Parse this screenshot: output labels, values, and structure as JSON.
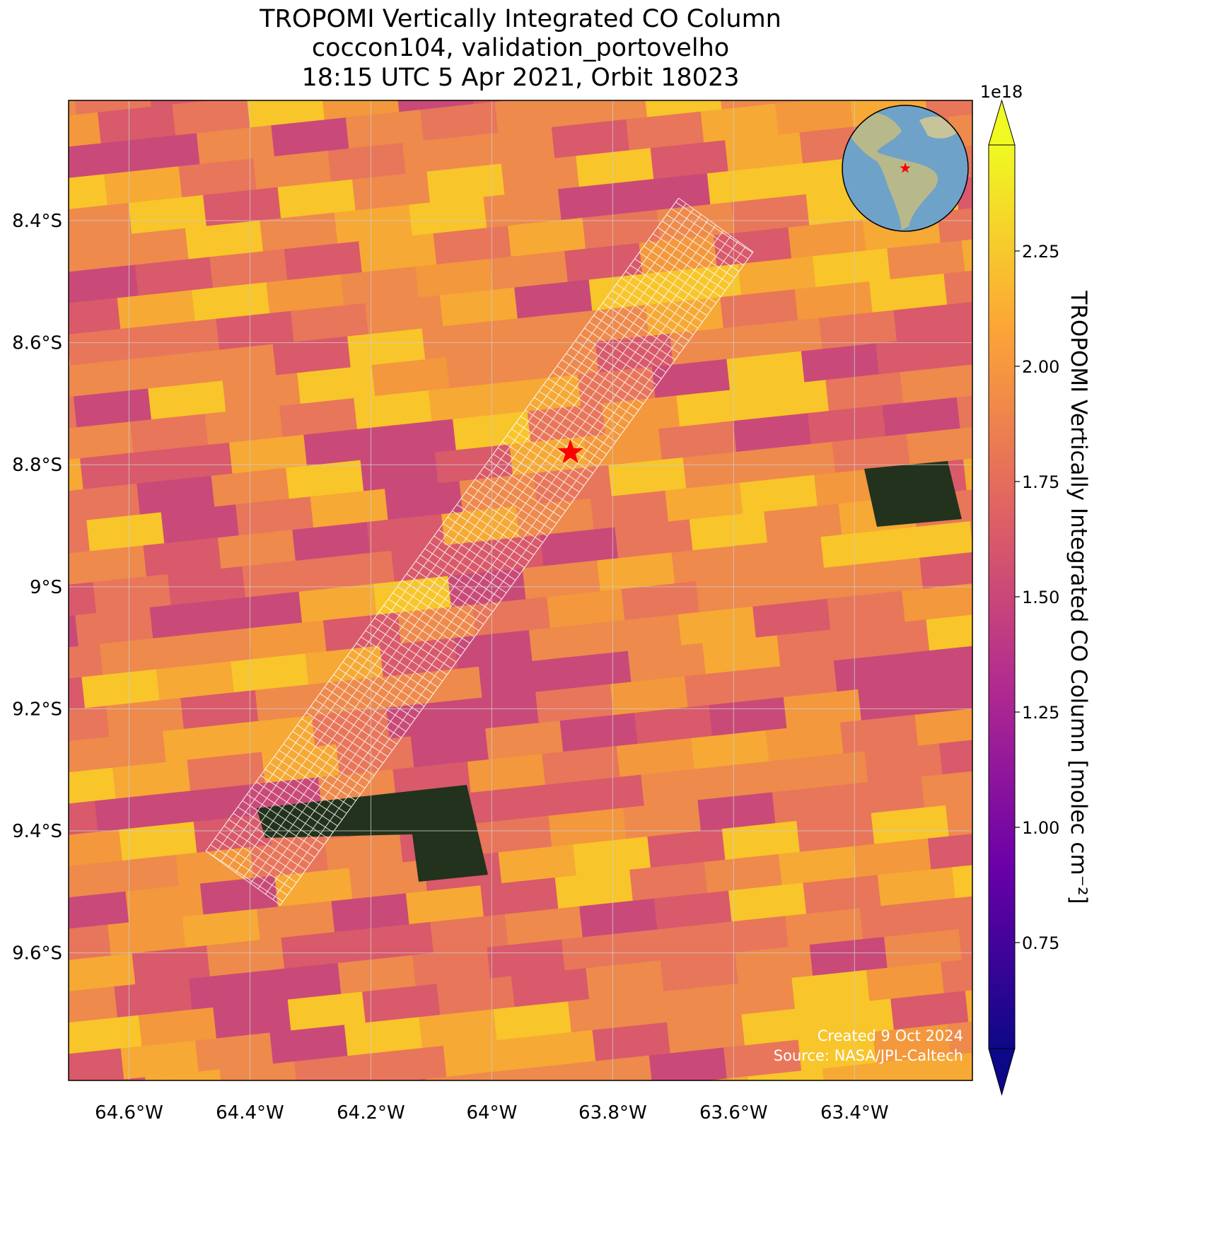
{
  "chart_data": {
    "type": "map",
    "title": [
      "TROPOMI Vertically Integrated CO Column",
      "coccon104, validation_portovelho",
      "18:15 UTC 5 Apr 2021, Orbit 18023"
    ],
    "xlim": [
      -64.7,
      -63.205
    ],
    "ylim": [
      -9.809,
      -8.203
    ],
    "xticks": [
      {
        "value": -64.6,
        "label": "64.6°W"
      },
      {
        "value": -64.4,
        "label": "64.4°W"
      },
      {
        "value": -64.2,
        "label": "64.2°W"
      },
      {
        "value": -64.0,
        "label": "64°W"
      },
      {
        "value": -63.8,
        "label": "63.8°W"
      },
      {
        "value": -63.6,
        "label": "63.6°W"
      },
      {
        "value": -63.4,
        "label": "63.4°W"
      }
    ],
    "yticks": [
      {
        "value": -8.4,
        "label": "8.4°S"
      },
      {
        "value": -8.6,
        "label": "8.6°S"
      },
      {
        "value": -8.8,
        "label": "8.8°S"
      },
      {
        "value": -9.0,
        "label": "9°S"
      },
      {
        "value": -9.2,
        "label": "9.2°S"
      },
      {
        "value": -9.4,
        "label": "9.4°S"
      },
      {
        "value": -9.6,
        "label": "9.6°S"
      }
    ],
    "grid": true,
    "site": {
      "lon": -63.87,
      "lat": -8.78,
      "color": "#ff0000"
    },
    "colorbar": {
      "label": "TROPOMI Vertically Integrated CO Column [molec cm⁻²]",
      "multiplier": "1e18",
      "lim": [
        0.52,
        2.48
      ],
      "ticks": [
        0.75,
        {
          "value": 1.0,
          "label": "1.00"
        },
        1.25,
        {
          "value": 1.5,
          "label": "1.50"
        },
        1.75,
        {
          "value": 2.0,
          "label": "2.00"
        },
        2.25
      ],
      "colors": [
        "#0d0887",
        "#6a00a8",
        "#b12a90",
        "#e16462",
        "#fca636",
        "#f0f921"
      ],
      "extend": "both"
    },
    "annotations": [
      "Created 9 Oct 2024",
      "Source: NASA/JPL-Caltech"
    ]
  }
}
